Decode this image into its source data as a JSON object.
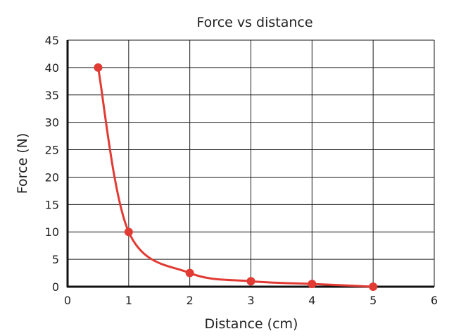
{
  "chart_data": {
    "type": "line",
    "title": "Force vs distance",
    "xlabel": "Distance (cm)",
    "ylabel": "Force (N)",
    "xlim": [
      0,
      6
    ],
    "ylim": [
      0,
      45
    ],
    "xticks": [
      0,
      1,
      2,
      3,
      4,
      5,
      6
    ],
    "yticks": [
      0,
      5,
      10,
      15,
      20,
      25,
      30,
      35,
      40,
      45
    ],
    "grid": true,
    "legend": "none",
    "series": [
      {
        "color": "#e23b34",
        "smooth": true,
        "markers": true,
        "points": [
          {
            "x": 0.5,
            "y": 40
          },
          {
            "x": 1,
            "y": 10
          },
          {
            "x": 2,
            "y": 2.5
          },
          {
            "x": 3,
            "y": 1
          },
          {
            "x": 4,
            "y": 0.5
          },
          {
            "x": 5,
            "y": 0
          }
        ]
      }
    ]
  }
}
